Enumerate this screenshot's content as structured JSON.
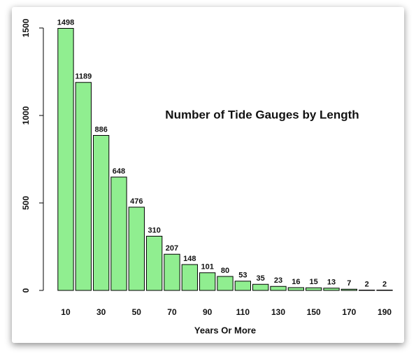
{
  "chart_data": {
    "type": "bar",
    "title": "Number of Tide Gauges by Length",
    "x_label": "Years Or More",
    "categories": [
      "10",
      null,
      "30",
      null,
      "50",
      null,
      "70",
      null,
      "90",
      null,
      "110",
      null,
      "130",
      null,
      "150",
      null,
      "170",
      null,
      "190"
    ],
    "values": [
      1498,
      1189,
      886,
      648,
      476,
      310,
      207,
      148,
      101,
      80,
      53,
      35,
      23,
      16,
      15,
      13,
      7,
      2,
      2
    ],
    "color": "#90ee90",
    "ylim": [
      0,
      1500
    ],
    "yticks": [
      0,
      500,
      1000,
      1500
    ],
    "grid": false
  }
}
